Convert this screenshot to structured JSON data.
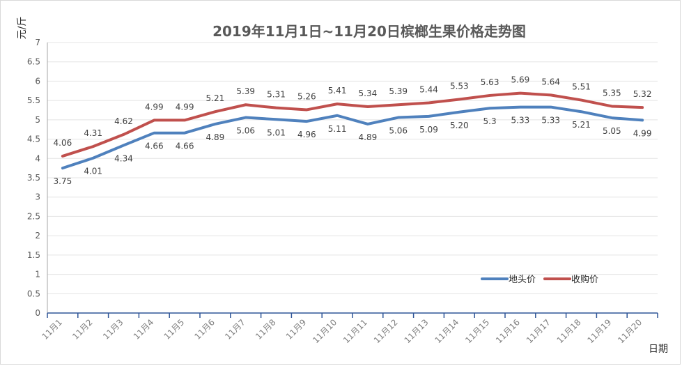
{
  "chart_data": {
    "type": "line",
    "title": "2019年11月1日~11月20日槟榔生果价格走势图",
    "xlabel": "日期",
    "ylabel": "元/斤",
    "ylim": [
      0,
      7
    ],
    "yticks": [
      "0",
      "0.5",
      "1",
      "1.5",
      "2",
      "2.5",
      "3",
      "3.5",
      "4",
      "4.5",
      "5",
      "5.5",
      "6",
      "6.5",
      "7"
    ],
    "categories": [
      "11月1",
      "11月2",
      "11月3",
      "11月4",
      "11月5",
      "11月6",
      "11月7",
      "11月8",
      "11月9",
      "11月10",
      "11月11",
      "11月12",
      "11月13",
      "11月14",
      "11月15",
      "11月16",
      "11月17",
      "11月18",
      "11月19",
      "11月20"
    ],
    "grid": true,
    "legend_position": "bottom-right",
    "series": [
      {
        "name": "地头价",
        "color": "#4f81bd",
        "values": [
          3.75,
          4.01,
          4.34,
          4.66,
          4.66,
          4.89,
          5.06,
          5.01,
          4.96,
          5.11,
          4.89,
          5.06,
          5.09,
          5.2,
          5.3,
          5.33,
          5.33,
          5.21,
          5.05,
          4.99
        ],
        "labels": [
          "3.75",
          "4.01",
          "4.34",
          "4.66",
          "4.66",
          "4.89",
          "5.06",
          "5.01",
          "4.96",
          "5.11",
          "4.89",
          "5.06",
          "5.09",
          "5.20",
          "5.3",
          "5.33",
          "5.33",
          "5.21",
          "5.05",
          "4.99"
        ]
      },
      {
        "name": "收购价",
        "color": "#c0504d",
        "values": [
          4.06,
          4.31,
          4.62,
          4.99,
          4.99,
          5.21,
          5.39,
          5.31,
          5.26,
          5.41,
          5.34,
          5.39,
          5.44,
          5.53,
          5.63,
          5.69,
          5.64,
          5.51,
          5.35,
          5.32
        ],
        "labels": [
          "4.06",
          "4.31",
          "4.62",
          "4.99",
          "4.99",
          "5.21",
          "5.39",
          "5.31",
          "5.26",
          "5.41",
          "5.34",
          "5.39",
          "5.44",
          "5.53",
          "5.63",
          "5.69",
          "5.64",
          "5.51",
          "5.35",
          "5.32"
        ]
      }
    ]
  }
}
